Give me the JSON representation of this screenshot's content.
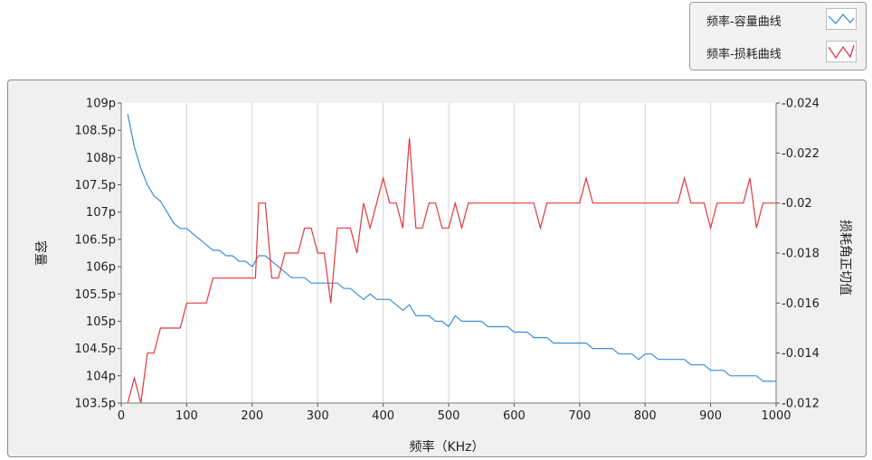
{
  "legend": {
    "items": [
      {
        "label": "频率-容量曲线",
        "color": "#3a8fd8"
      },
      {
        "label": "频率-损耗曲线",
        "color": "#e0393e"
      }
    ]
  },
  "chart_data": {
    "type": "line",
    "xlabel": "频率（KHz）",
    "ylabel": "容量",
    "y2label": "损耗角正切值",
    "xlim": [
      0,
      1000
    ],
    "ylim": [
      103.5,
      109
    ],
    "y2lim": [
      0.012,
      0.024
    ],
    "xticks": [
      "0",
      "100",
      "200",
      "300",
      "400",
      "500",
      "600",
      "700",
      "800",
      "900",
      "1000"
    ],
    "yticks": [
      "103.5p",
      "104p",
      "104.5p",
      "105p",
      "105.5p",
      "106p",
      "106.5p",
      "107p",
      "107.5p",
      "108p",
      "108.5p",
      "109p"
    ],
    "y2ticks": [
      "0.012",
      "0.014",
      "0.016",
      "0.018",
      "0.02",
      "0.022",
      "0.024"
    ],
    "grid": {
      "x": true,
      "y": false
    },
    "legend_position": "top-right",
    "series": [
      {
        "name": "频率-容量曲线",
        "axis": "left",
        "color": "#3a8fd8",
        "x": [
          10,
          20,
          30,
          40,
          50,
          60,
          70,
          80,
          90,
          100,
          110,
          120,
          130,
          140,
          150,
          160,
          170,
          180,
          190,
          200,
          210,
          220,
          230,
          240,
          250,
          260,
          270,
          280,
          290,
          300,
          310,
          320,
          330,
          340,
          350,
          360,
          370,
          380,
          390,
          400,
          410,
          420,
          430,
          440,
          450,
          460,
          470,
          480,
          490,
          500,
          510,
          520,
          530,
          540,
          550,
          560,
          570,
          580,
          590,
          600,
          610,
          620,
          630,
          640,
          650,
          660,
          670,
          680,
          690,
          700,
          710,
          720,
          730,
          740,
          750,
          760,
          770,
          780,
          790,
          800,
          810,
          820,
          830,
          840,
          850,
          860,
          870,
          880,
          890,
          900,
          910,
          920,
          930,
          940,
          950,
          960,
          970,
          980,
          990,
          1000
        ],
        "values": [
          108.8,
          108.2,
          107.8,
          107.5,
          107.3,
          107.2,
          107.0,
          106.8,
          106.7,
          106.7,
          106.6,
          106.5,
          106.4,
          106.3,
          106.3,
          106.2,
          106.2,
          106.1,
          106.1,
          106.0,
          106.2,
          106.2,
          106.1,
          106.0,
          105.9,
          105.8,
          105.8,
          105.8,
          105.7,
          105.7,
          105.7,
          105.7,
          105.7,
          105.6,
          105.6,
          105.5,
          105.4,
          105.5,
          105.4,
          105.4,
          105.4,
          105.3,
          105.2,
          105.3,
          105.1,
          105.1,
          105.1,
          105.0,
          105.0,
          104.9,
          105.1,
          105.0,
          105.0,
          105.0,
          105.0,
          104.9,
          104.9,
          104.9,
          104.9,
          104.8,
          104.8,
          104.8,
          104.7,
          104.7,
          104.7,
          104.6,
          104.6,
          104.6,
          104.6,
          104.6,
          104.6,
          104.5,
          104.5,
          104.5,
          104.5,
          104.4,
          104.4,
          104.4,
          104.3,
          104.4,
          104.4,
          104.3,
          104.3,
          104.3,
          104.3,
          104.3,
          104.2,
          104.2,
          104.2,
          104.1,
          104.1,
          104.1,
          104.0,
          104.0,
          104.0,
          104.0,
          104.0,
          103.9,
          103.9,
          103.9
        ]
      },
      {
        "name": "频率-损耗曲线",
        "axis": "right",
        "color": "#e0393e",
        "x": [
          10,
          20,
          30,
          40,
          50,
          60,
          70,
          80,
          90,
          100,
          110,
          120,
          130,
          140,
          150,
          160,
          170,
          180,
          190,
          200,
          205,
          210,
          220,
          230,
          240,
          250,
          260,
          270,
          280,
          290,
          300,
          310,
          320,
          330,
          340,
          350,
          360,
          370,
          380,
          390,
          400,
          410,
          420,
          430,
          440,
          450,
          460,
          470,
          480,
          490,
          500,
          510,
          520,
          530,
          540,
          550,
          560,
          570,
          580,
          590,
          600,
          610,
          620,
          630,
          640,
          650,
          660,
          670,
          680,
          690,
          700,
          710,
          720,
          730,
          740,
          750,
          760,
          770,
          780,
          790,
          800,
          810,
          820,
          830,
          840,
          850,
          860,
          870,
          880,
          890,
          900,
          910,
          920,
          930,
          940,
          950,
          960,
          970,
          980,
          990,
          1000
        ],
        "values": [
          0.012,
          0.013,
          0.012,
          0.014,
          0.014,
          0.015,
          0.015,
          0.015,
          0.015,
          0.016,
          0.016,
          0.016,
          0.016,
          0.017,
          0.017,
          0.017,
          0.017,
          0.017,
          0.017,
          0.017,
          0.017,
          0.02,
          0.02,
          0.017,
          0.017,
          0.018,
          0.018,
          0.018,
          0.019,
          0.019,
          0.018,
          0.018,
          0.016,
          0.019,
          0.019,
          0.019,
          0.018,
          0.02,
          0.019,
          0.02,
          0.021,
          0.02,
          0.02,
          0.019,
          0.0226,
          0.019,
          0.019,
          0.02,
          0.02,
          0.019,
          0.019,
          0.02,
          0.019,
          0.02,
          0.02,
          0.02,
          0.02,
          0.02,
          0.02,
          0.02,
          0.02,
          0.02,
          0.02,
          0.02,
          0.019,
          0.02,
          0.02,
          0.02,
          0.02,
          0.02,
          0.02,
          0.021,
          0.02,
          0.02,
          0.02,
          0.02,
          0.02,
          0.02,
          0.02,
          0.02,
          0.02,
          0.02,
          0.02,
          0.02,
          0.02,
          0.02,
          0.021,
          0.02,
          0.02,
          0.02,
          0.019,
          0.02,
          0.02,
          0.02,
          0.02,
          0.02,
          0.021,
          0.019,
          0.02,
          0.02,
          0.02
        ]
      }
    ]
  }
}
